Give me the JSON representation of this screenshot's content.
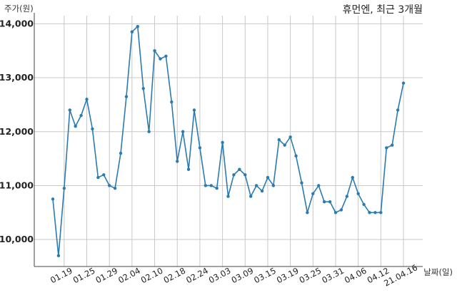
{
  "chart_data": {
    "type": "line",
    "title": "휴먼엔, 최근 3개월",
    "ylabel": "주가(원)",
    "xlabel": "날짜(일)",
    "ylim": [
      9500,
      14150
    ],
    "yticks": [
      10000,
      11000,
      12000,
      13000,
      14000
    ],
    "ytick_labels": [
      "10,000",
      "11,000",
      "12,000",
      "13,000",
      "14,000"
    ],
    "xtick_labels": [
      "01.19",
      "01.25",
      "01.29",
      "02.04",
      "02.10",
      "02.18",
      "02.24",
      "03.03",
      "03.09",
      "03.15",
      "03.19",
      "03.25",
      "03.31",
      "04.06",
      "04.12",
      "21.04.16"
    ],
    "xtick_index": [
      3,
      7,
      11,
      15,
      19,
      23,
      27,
      31,
      35,
      39,
      43,
      47,
      51,
      55,
      59,
      63
    ],
    "grid": true,
    "series": [
      {
        "values": [
          10750,
          9700,
          10950,
          12400,
          12100,
          12300,
          12600,
          12050,
          11150,
          11200,
          11000,
          10950,
          11600,
          12650,
          13850,
          13950,
          12800,
          12000,
          13500,
          13350,
          13400,
          12550,
          11450,
          12000,
          11300,
          12400,
          11700,
          11000,
          11000,
          10950,
          11800,
          10800,
          11200,
          11300,
          11200,
          10800,
          11000,
          10900,
          11150,
          11000,
          11850,
          11750,
          11900,
          11550,
          11050,
          10500,
          10850,
          11000,
          10700,
          10700,
          10500,
          10550,
          10800,
          11150,
          10850,
          10650,
          10500,
          10500,
          10500,
          11700,
          11750,
          12400,
          12900
        ]
      }
    ]
  }
}
